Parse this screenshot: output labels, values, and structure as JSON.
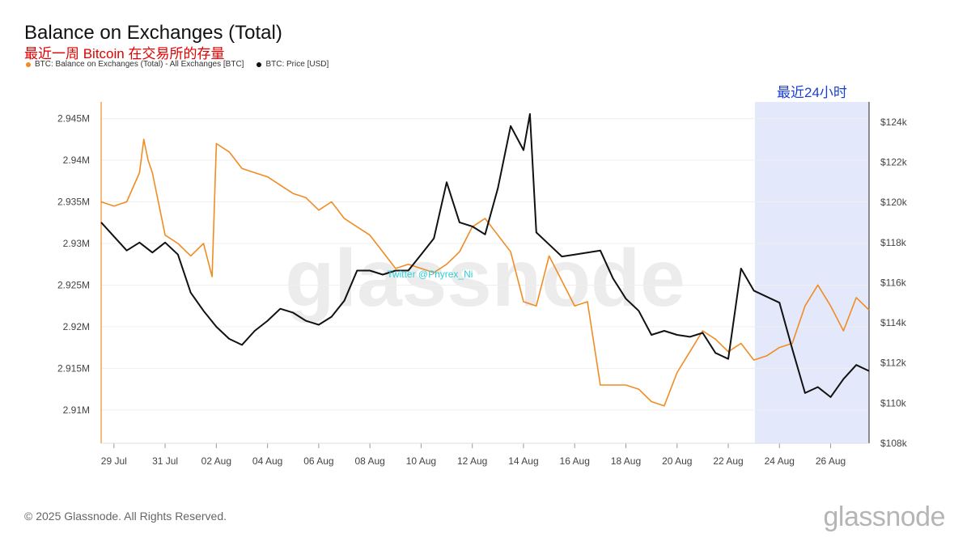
{
  "header": {
    "title": "Balance on Exchanges (Total)",
    "subtitle": "最近一周 Bitcoin 在交易所的存量"
  },
  "legend": {
    "series1": "BTC: Balance on Exchanges (Total) - All Exchanges [BTC]",
    "series2": "BTC: Price [USD]"
  },
  "footer": {
    "copyright": "© 2025 Glassnode. All Rights Reserved.",
    "brand": "glassnode"
  },
  "colors": {
    "balance": "#f08c24",
    "price": "#111111",
    "highlight": "#e4e8fb",
    "highlight_label": "#1a3fd0"
  },
  "chart_data": {
    "type": "line",
    "title": "Balance on Exchanges (Total)",
    "watermark": "glassnode",
    "handle": "Twitter @Phyrex_Ni",
    "highlight": {
      "label": "最近24小时",
      "from": "2025-08-23T01:00",
      "to": "2025-08-27T12:00"
    },
    "x_ticks": [
      "29 Jul",
      "31 Jul",
      "02 Aug",
      "04 Aug",
      "06 Aug",
      "08 Aug",
      "10 Aug",
      "12 Aug",
      "14 Aug",
      "16 Aug",
      "18 Aug",
      "20 Aug",
      "22 Aug",
      "24 Aug",
      "26 Aug"
    ],
    "x_tick_dates": [
      "2025-07-29",
      "2025-07-31",
      "2025-08-02",
      "2025-08-04",
      "2025-08-06",
      "2025-08-08",
      "2025-08-10",
      "2025-08-12",
      "2025-08-14",
      "2025-08-16",
      "2025-08-18",
      "2025-08-20",
      "2025-08-22",
      "2025-08-24",
      "2025-08-26"
    ],
    "xlim": [
      "2025-07-28T12:00",
      "2025-08-27T12:00"
    ],
    "y_left": {
      "ylim": [
        2.906,
        2.947
      ],
      "ticks": [
        2.91,
        2.915,
        2.92,
        2.925,
        2.93,
        2.935,
        2.94,
        2.945
      ],
      "tick_labels": [
        "2.91M",
        "2.915M",
        "2.92M",
        "2.925M",
        "2.93M",
        "2.935M",
        "2.94M",
        "2.945M"
      ]
    },
    "y_right": {
      "ylim": [
        108,
        125
      ],
      "ticks": [
        108,
        110,
        112,
        114,
        116,
        118,
        120,
        122,
        124
      ],
      "tick_labels": [
        "$108k",
        "$110k",
        "$112k",
        "$114k",
        "$116k",
        "$118k",
        "$120k",
        "$122k",
        "$124k"
      ]
    },
    "series": [
      {
        "name": "BTC: Balance on Exchanges (Total) - All Exchanges [BTC]",
        "axis": "left",
        "color": "#f08c24",
        "x": [
          "2025-07-28T12:00",
          "2025-07-29T00:00",
          "2025-07-29T12:00",
          "2025-07-30T00:00",
          "2025-07-30T04:00",
          "2025-07-30T08:00",
          "2025-07-30T12:00",
          "2025-07-31T00:00",
          "2025-07-31T12:00",
          "2025-08-01T00:00",
          "2025-08-01T12:00",
          "2025-08-01T20:00",
          "2025-08-02T00:00",
          "2025-08-02T12:00",
          "2025-08-03T00:00",
          "2025-08-03T12:00",
          "2025-08-04T00:00",
          "2025-08-04T12:00",
          "2025-08-05T00:00",
          "2025-08-05T12:00",
          "2025-08-06T00:00",
          "2025-08-06T12:00",
          "2025-08-07T00:00",
          "2025-08-07T12:00",
          "2025-08-08T00:00",
          "2025-08-08T12:00",
          "2025-08-09T00:00",
          "2025-08-09T12:00",
          "2025-08-10T00:00",
          "2025-08-10T12:00",
          "2025-08-11T00:00",
          "2025-08-11T12:00",
          "2025-08-12T00:00",
          "2025-08-12T12:00",
          "2025-08-13T00:00",
          "2025-08-13T12:00",
          "2025-08-14T00:00",
          "2025-08-14T12:00",
          "2025-08-15T00:00",
          "2025-08-15T12:00",
          "2025-08-16T00:00",
          "2025-08-16T12:00",
          "2025-08-17T00:00",
          "2025-08-17T12:00",
          "2025-08-18T00:00",
          "2025-08-18T12:00",
          "2025-08-19T00:00",
          "2025-08-19T12:00",
          "2025-08-20T00:00",
          "2025-08-20T12:00",
          "2025-08-21T00:00",
          "2025-08-21T12:00",
          "2025-08-22T00:00",
          "2025-08-22T12:00",
          "2025-08-23T00:00",
          "2025-08-23T12:00",
          "2025-08-24T00:00",
          "2025-08-24T12:00",
          "2025-08-25T00:00",
          "2025-08-25T12:00",
          "2025-08-26T00:00",
          "2025-08-26T12:00",
          "2025-08-27T00:00",
          "2025-08-27T12:00"
        ],
        "values": [
          2.935,
          2.9345,
          2.935,
          2.9385,
          2.9425,
          2.94,
          2.9385,
          2.931,
          2.93,
          2.9285,
          2.93,
          2.926,
          2.942,
          2.941,
          2.939,
          2.9385,
          2.938,
          2.937,
          2.936,
          2.9355,
          2.934,
          2.935,
          2.933,
          2.932,
          2.931,
          2.929,
          2.927,
          2.9275,
          2.927,
          2.9265,
          2.9275,
          2.929,
          2.932,
          2.933,
          2.931,
          2.929,
          2.923,
          2.9225,
          2.9285,
          2.9255,
          2.9225,
          2.923,
          2.913,
          2.913,
          2.913,
          2.9125,
          2.911,
          2.9105,
          2.9145,
          2.917,
          2.9195,
          2.9185,
          2.917,
          2.918,
          2.916,
          2.9165,
          2.9175,
          2.918,
          2.9225,
          2.925,
          2.9225,
          2.9195,
          2.9235,
          2.922
        ]
      },
      {
        "name": "BTC: Price [USD]",
        "axis": "right",
        "color": "#111111",
        "x": [
          "2025-07-28T12:00",
          "2025-07-29T00:00",
          "2025-07-29T12:00",
          "2025-07-30T00:00",
          "2025-07-30T12:00",
          "2025-07-31T00:00",
          "2025-07-31T12:00",
          "2025-08-01T00:00",
          "2025-08-01T12:00",
          "2025-08-02T00:00",
          "2025-08-02T12:00",
          "2025-08-03T00:00",
          "2025-08-03T12:00",
          "2025-08-04T00:00",
          "2025-08-04T12:00",
          "2025-08-05T00:00",
          "2025-08-05T12:00",
          "2025-08-06T00:00",
          "2025-08-06T12:00",
          "2025-08-07T00:00",
          "2025-08-07T12:00",
          "2025-08-08T00:00",
          "2025-08-08T12:00",
          "2025-08-09T00:00",
          "2025-08-09T12:00",
          "2025-08-10T00:00",
          "2025-08-10T12:00",
          "2025-08-11T00:00",
          "2025-08-11T12:00",
          "2025-08-12T00:00",
          "2025-08-12T12:00",
          "2025-08-13T00:00",
          "2025-08-13T12:00",
          "2025-08-14T00:00",
          "2025-08-14T06:00",
          "2025-08-14T12:00",
          "2025-08-15T00:00",
          "2025-08-15T12:00",
          "2025-08-16T00:00",
          "2025-08-16T12:00",
          "2025-08-17T00:00",
          "2025-08-17T12:00",
          "2025-08-18T00:00",
          "2025-08-18T12:00",
          "2025-08-19T00:00",
          "2025-08-19T12:00",
          "2025-08-20T00:00",
          "2025-08-20T12:00",
          "2025-08-21T00:00",
          "2025-08-21T12:00",
          "2025-08-22T00:00",
          "2025-08-22T12:00",
          "2025-08-23T00:00",
          "2025-08-23T12:00",
          "2025-08-24T00:00",
          "2025-08-24T12:00",
          "2025-08-25T00:00",
          "2025-08-25T12:00",
          "2025-08-26T00:00",
          "2025-08-26T12:00",
          "2025-08-27T00:00",
          "2025-08-27T12:00"
        ],
        "values": [
          119.0,
          118.3,
          117.6,
          118.0,
          117.5,
          118.0,
          117.4,
          115.5,
          114.6,
          113.8,
          113.2,
          112.9,
          113.6,
          114.1,
          114.7,
          114.5,
          114.1,
          113.9,
          114.3,
          115.1,
          116.6,
          116.6,
          116.4,
          116.6,
          116.6,
          117.4,
          118.2,
          121.0,
          119.0,
          118.8,
          118.4,
          120.7,
          123.8,
          122.6,
          124.4,
          118.5,
          117.9,
          117.3,
          117.4,
          117.5,
          117.6,
          116.2,
          115.2,
          114.6,
          113.4,
          113.6,
          113.4,
          113.3,
          113.5,
          112.5,
          112.2,
          116.7,
          115.6,
          115.3,
          115.0,
          112.7,
          110.5,
          110.8,
          110.3,
          111.2,
          111.9,
          111.6
        ]
      }
    ]
  }
}
